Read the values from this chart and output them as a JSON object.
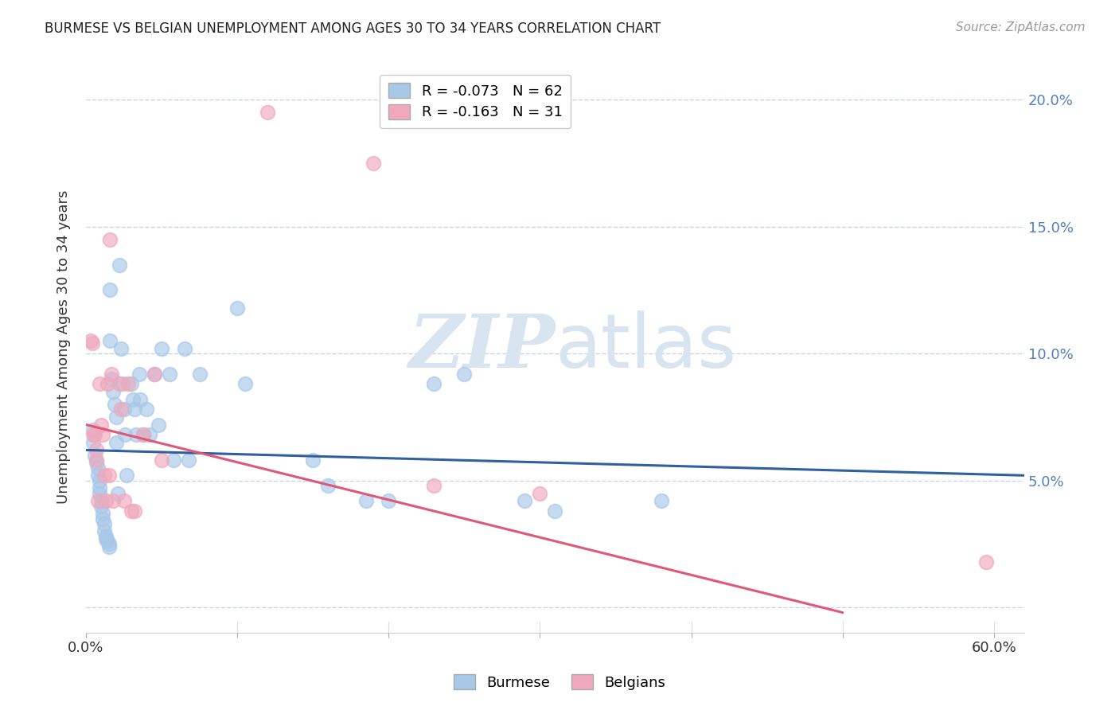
{
  "title": "BURMESE VS BELGIAN UNEMPLOYMENT AMONG AGES 30 TO 34 YEARS CORRELATION CHART",
  "source": "Source: ZipAtlas.com",
  "ylabel": "Unemployment Among Ages 30 to 34 years",
  "xlim": [
    0.0,
    0.62
  ],
  "ylim": [
    -0.01,
    0.215
  ],
  "ytick_vals": [
    0.0,
    0.05,
    0.1,
    0.15,
    0.2
  ],
  "ytick_labels": [
    "",
    "5.0%",
    "10.0%",
    "15.0%",
    "20.0%"
  ],
  "legend_entry1": "R = -0.073   N = 62",
  "legend_entry2": "R = -0.163   N = 31",
  "legend_label1": "Burmese",
  "legend_label2": "Belgians",
  "color_blue": "#a8c8e8",
  "color_pink": "#f0a8bc",
  "color_blue_line": "#3060a0",
  "color_pink_line": "#e05878",
  "watermark_color": "#d8e4f0",
  "grid_color": "#c8d4e4",
  "background_color": "#ffffff",
  "burmese_x": [
    0.005,
    0.005,
    0.006,
    0.007,
    0.008,
    0.008,
    0.009,
    0.009,
    0.009,
    0.01,
    0.01,
    0.011,
    0.011,
    0.012,
    0.012,
    0.013,
    0.013,
    0.014,
    0.015,
    0.015,
    0.016,
    0.016,
    0.017,
    0.018,
    0.019,
    0.02,
    0.02,
    0.021,
    0.022,
    0.023,
    0.024,
    0.025,
    0.026,
    0.027,
    0.03,
    0.031,
    0.032,
    0.033,
    0.035,
    0.036,
    0.038,
    0.04,
    0.042,
    0.045,
    0.048,
    0.05,
    0.055,
    0.058,
    0.065,
    0.068,
    0.075,
    0.1,
    0.105,
    0.15,
    0.16,
    0.185,
    0.2,
    0.23,
    0.25,
    0.29,
    0.31,
    0.38
  ],
  "burmese_y": [
    0.07,
    0.065,
    0.06,
    0.057,
    0.055,
    0.052,
    0.05,
    0.047,
    0.045,
    0.042,
    0.04,
    0.037,
    0.035,
    0.033,
    0.03,
    0.028,
    0.027,
    0.026,
    0.025,
    0.024,
    0.125,
    0.105,
    0.09,
    0.085,
    0.08,
    0.075,
    0.065,
    0.045,
    0.135,
    0.102,
    0.088,
    0.078,
    0.068,
    0.052,
    0.088,
    0.082,
    0.078,
    0.068,
    0.092,
    0.082,
    0.068,
    0.078,
    0.068,
    0.092,
    0.072,
    0.102,
    0.092,
    0.058,
    0.102,
    0.058,
    0.092,
    0.118,
    0.088,
    0.058,
    0.048,
    0.042,
    0.042,
    0.088,
    0.092,
    0.042,
    0.038,
    0.042
  ],
  "belgians_x": [
    0.003,
    0.004,
    0.005,
    0.006,
    0.007,
    0.007,
    0.008,
    0.009,
    0.01,
    0.011,
    0.012,
    0.013,
    0.014,
    0.015,
    0.016,
    0.017,
    0.018,
    0.022,
    0.023,
    0.025,
    0.028,
    0.03,
    0.032,
    0.038,
    0.045,
    0.05,
    0.12,
    0.19,
    0.23,
    0.3,
    0.595
  ],
  "belgians_y": [
    0.105,
    0.104,
    0.068,
    0.068,
    0.062,
    0.058,
    0.042,
    0.088,
    0.072,
    0.068,
    0.052,
    0.042,
    0.088,
    0.052,
    0.145,
    0.092,
    0.042,
    0.088,
    0.078,
    0.042,
    0.088,
    0.038,
    0.038,
    0.068,
    0.092,
    0.058,
    0.195,
    0.175,
    0.048,
    0.045,
    0.018
  ],
  "blue_line_x": [
    0.0,
    0.62
  ],
  "blue_line_y": [
    0.062,
    0.052
  ],
  "pink_line_x": [
    0.0,
    0.5
  ],
  "pink_line_y": [
    0.072,
    -0.002
  ]
}
